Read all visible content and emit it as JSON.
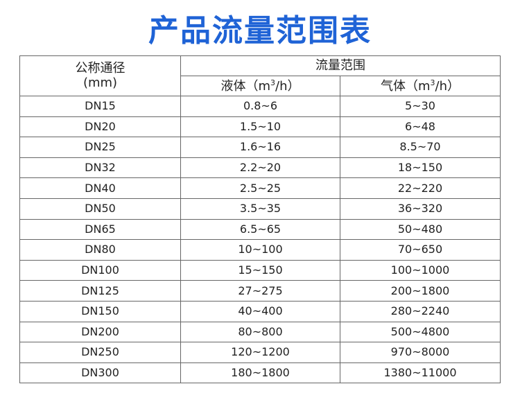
{
  "title": "产品流量范围表",
  "table": {
    "header": {
      "size": [
        "公称通径",
        "(mm)"
      ],
      "flow": "流量范围",
      "liquid": [
        "液体（m",
        "3",
        "/h）"
      ],
      "gas": [
        "气体（m",
        "3",
        "/h）"
      ]
    },
    "rows": [
      [
        "DN15",
        "0.8~6",
        "5~30"
      ],
      [
        "DN20",
        "1.5~10",
        "6~48"
      ],
      [
        "DN25",
        "1.6~16",
        "8.5~70"
      ],
      [
        "DN32",
        "2.2~20",
        "18~150"
      ],
      [
        "DN40",
        "2.5~25",
        "22~220"
      ],
      [
        "DN50",
        "3.5~35",
        "36~320"
      ],
      [
        "DN65",
        "6.5~65",
        "50~480"
      ],
      [
        "DN80",
        "10~100",
        "70~650"
      ],
      [
        "DN100",
        "15~150",
        "100~1000"
      ],
      [
        "DN125",
        "27~275",
        "200~1800"
      ],
      [
        "DN150",
        "40~400",
        "280~2240"
      ],
      [
        "DN200",
        "80~800",
        "500~4800"
      ],
      [
        "DN250",
        "120~1200",
        "970~8000"
      ],
      [
        "DN300",
        "180~1800",
        "1380~11000"
      ]
    ]
  }
}
